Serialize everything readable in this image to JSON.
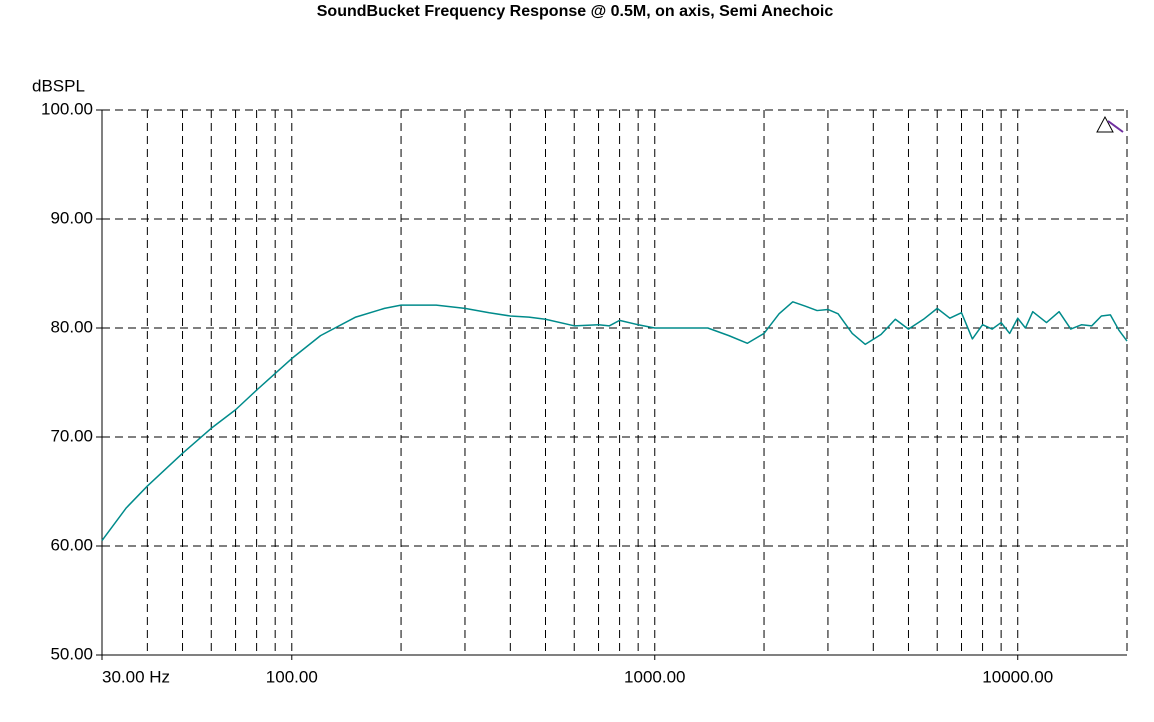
{
  "chart_data": {
    "type": "line",
    "title": "SoundBucket Frequency Response @ 0.5M, on axis, Semi Anechoic",
    "ylabel": "dBSPL",
    "xscale": "log",
    "xlim": [
      30,
      20000
    ],
    "ylim": [
      50,
      100
    ],
    "xticks": [
      {
        "value": 30,
        "label": "30.00 Hz"
      },
      {
        "value": 100,
        "label": "100.00"
      },
      {
        "value": 1000,
        "label": "1000.00"
      },
      {
        "value": 10000,
        "label": "10000.00"
      }
    ],
    "xgrid": [
      40,
      50,
      60,
      70,
      80,
      90,
      100,
      200,
      300,
      400,
      500,
      600,
      700,
      800,
      900,
      1000,
      2000,
      3000,
      4000,
      5000,
      6000,
      7000,
      8000,
      9000,
      10000,
      20000
    ],
    "yticks": [
      {
        "value": 50,
        "label": "50.00"
      },
      {
        "value": 60,
        "label": "60.00"
      },
      {
        "value": 70,
        "label": "70.00"
      },
      {
        "value": 80,
        "label": "80.00"
      },
      {
        "value": 90,
        "label": "90.00"
      },
      {
        "value": 100,
        "label": "100.00"
      }
    ],
    "grid": true,
    "color": "#008b8b",
    "x": [
      30,
      35,
      40,
      50,
      60,
      70,
      80,
      100,
      120,
      150,
      180,
      200,
      250,
      300,
      350,
      400,
      450,
      500,
      600,
      700,
      750,
      800,
      900,
      1000,
      1200,
      1400,
      1600,
      1800,
      2000,
      2200,
      2400,
      2600,
      2800,
      3000,
      3200,
      3500,
      3800,
      4200,
      4600,
      5000,
      5500,
      6000,
      6500,
      7000,
      7500,
      8000,
      8500,
      9000,
      9500,
      10000,
      10500,
      11000,
      12000,
      13000,
      14000,
      15000,
      16000,
      17000,
      18000,
      19000,
      20000
    ],
    "values": [
      60.5,
      63.5,
      65.5,
      68.5,
      70.8,
      72.5,
      74.3,
      77.2,
      79.3,
      81,
      81.8,
      82.1,
      82.1,
      81.8,
      81.4,
      81.1,
      81.0,
      80.8,
      80.2,
      80.3,
      80.2,
      80.7,
      80.3,
      80.0,
      80.0,
      80.0,
      79.3,
      78.6,
      79.5,
      81.3,
      82.4,
      82.0,
      81.6,
      81.7,
      81.3,
      79.5,
      78.5,
      79.4,
      80.8,
      79.9,
      80.8,
      81.8,
      80.9,
      81.4,
      79.0,
      80.3,
      79.9,
      80.5,
      79.5,
      80.9,
      80.0,
      81.5,
      80.5,
      81.5,
      79.9,
      80.3,
      80.2,
      81.1,
      81.2,
      79.8,
      78.8
    ]
  }
}
